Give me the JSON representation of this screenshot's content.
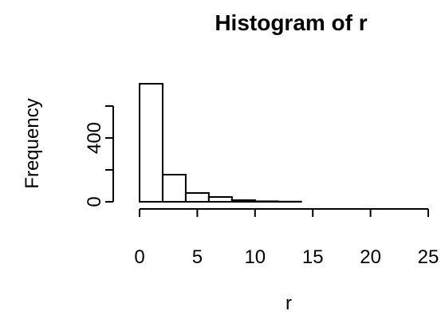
{
  "chart_data": {
    "type": "bar",
    "title": "Histogram of r",
    "xlabel": "r",
    "ylabel": "Frequency",
    "xlim": [
      0,
      25
    ],
    "ylim": [
      0,
      800
    ],
    "x_ticks": [
      0,
      5,
      10,
      15,
      20,
      25
    ],
    "y_ticks": [
      0,
      400
    ],
    "bins": [
      {
        "x0": 0,
        "x1": 2,
        "value": 740
      },
      {
        "x0": 2,
        "x1": 4,
        "value": 170
      },
      {
        "x0": 4,
        "x1": 6,
        "value": 55
      },
      {
        "x0": 6,
        "x1": 8,
        "value": 30
      },
      {
        "x0": 8,
        "x1": 10,
        "value": 10
      },
      {
        "x0": 10,
        "x1": 12,
        "value": 3
      },
      {
        "x0": 12,
        "x1": 14,
        "value": 1
      },
      {
        "x0": 14,
        "x1": 16,
        "value": 0
      },
      {
        "x0": 16,
        "x1": 18,
        "value": 0
      },
      {
        "x0": 18,
        "x1": 20,
        "value": 0
      },
      {
        "x0": 20,
        "x1": 22,
        "value": 0
      },
      {
        "x0": 22,
        "x1": 24,
        "value": 0
      },
      {
        "x0": 24,
        "x1": 26,
        "value": 0
      }
    ],
    "grid": false,
    "legend": "none"
  }
}
